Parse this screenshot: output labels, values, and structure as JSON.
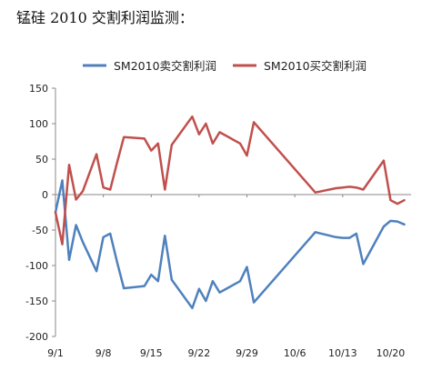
{
  "heading": "锰硅 2010 交割利润监测：",
  "chart_data": {
    "type": "line",
    "title": "",
    "xlabel": "",
    "ylabel": "",
    "legend_position": "top",
    "grid": false,
    "ylim": [
      -200,
      150
    ],
    "y_ticks": [
      150,
      100,
      50,
      0,
      -50,
      -100,
      -150,
      -200
    ],
    "x_ticks": [
      "9/1",
      "9/8",
      "9/15",
      "9/22",
      "9/29",
      "10/6",
      "10/13",
      "10/20"
    ],
    "x": [
      "9/1",
      "9/2",
      "9/3",
      "9/4",
      "9/5",
      "9/7",
      "9/8",
      "9/9",
      "9/10",
      "9/11",
      "9/14",
      "9/15",
      "9/16",
      "9/17",
      "9/18",
      "9/21",
      "9/22",
      "9/23",
      "9/24",
      "9/25",
      "9/28",
      "9/29",
      "9/30",
      "10/9",
      "10/12",
      "10/13",
      "10/14",
      "10/15",
      "10/16",
      "10/19",
      "10/20",
      "10/21",
      "10/22"
    ],
    "series": [
      {
        "name": "SM2010卖交割利润",
        "color": "#4F81BD",
        "values": [
          -25,
          20,
          -92,
          -43,
          -67,
          -108,
          -60,
          -55,
          -95,
          -132,
          -129,
          -113,
          -122,
          -58,
          -120,
          -160,
          -133,
          -150,
          -122,
          -138,
          -122,
          -102,
          -152,
          -53,
          -60,
          -61,
          -61,
          -55,
          -98,
          -45,
          -37,
          -38,
          -42
        ]
      },
      {
        "name": "SM2010买交割利润",
        "color": "#C0504D",
        "values": [
          -25,
          -70,
          42,
          -7,
          5,
          57,
          10,
          7,
          45,
          81,
          79,
          62,
          72,
          7,
          70,
          110,
          85,
          100,
          72,
          88,
          72,
          55,
          102,
          3,
          9,
          10,
          11,
          10,
          7,
          48,
          -8,
          -13,
          -8
        ]
      }
    ]
  }
}
